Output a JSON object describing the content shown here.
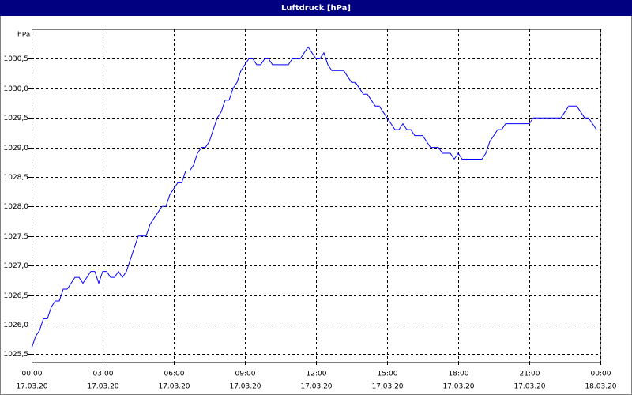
{
  "chart_data": {
    "type": "line",
    "title": "Luftdruck [hPa]",
    "y_label": "hPa",
    "color": "#0000ff",
    "grid": true,
    "x": [
      0,
      10,
      20,
      30,
      40,
      50,
      60,
      70,
      80,
      90,
      100,
      110,
      120,
      130,
      140,
      150,
      160,
      170,
      180,
      190,
      200,
      210,
      220,
      230,
      240,
      250,
      260,
      270,
      280,
      290,
      300,
      310,
      320,
      330,
      340,
      350,
      360,
      370,
      380,
      390,
      400,
      410,
      420,
      430,
      440,
      450,
      460,
      470,
      480,
      490,
      500,
      510,
      520,
      530,
      540,
      550,
      560,
      570,
      580,
      590,
      600,
      610,
      620,
      630,
      640,
      650,
      660,
      670,
      680,
      690,
      700,
      710,
      720,
      730,
      740,
      750,
      760,
      770,
      780,
      790,
      800,
      810,
      820,
      830,
      840,
      850,
      860,
      870,
      880,
      890,
      900,
      910,
      920,
      930,
      940,
      950,
      960,
      970,
      980,
      990,
      1000,
      1010,
      1020,
      1030,
      1040,
      1050,
      1060,
      1070,
      1080,
      1090,
      1100,
      1110,
      1120,
      1130,
      1140,
      1150,
      1160,
      1170,
      1180,
      1190,
      1200,
      1210,
      1220,
      1230,
      1240,
      1250,
      1260,
      1270,
      1280,
      1290,
      1300,
      1310,
      1320,
      1330,
      1340,
      1350,
      1360,
      1370,
      1380,
      1390,
      1400,
      1410,
      1420,
      1430
    ],
    "values": [
      1025.6,
      1025.8,
      1025.9,
      1026.1,
      1026.1,
      1026.3,
      1026.4,
      1026.4,
      1026.6,
      1026.6,
      1026.7,
      1026.8,
      1026.8,
      1026.7,
      1026.8,
      1026.9,
      1026.9,
      1026.7,
      1026.9,
      1026.9,
      1026.8,
      1026.8,
      1026.9,
      1026.8,
      1026.9,
      1027.1,
      1027.3,
      1027.5,
      1027.5,
      1027.5,
      1027.7,
      1027.8,
      1027.9,
      1028.0,
      1028.0,
      1028.2,
      1028.3,
      1028.4,
      1028.4,
      1028.6,
      1028.6,
      1028.7,
      1028.9,
      1029.0,
      1029.0,
      1029.1,
      1029.3,
      1029.5,
      1029.6,
      1029.8,
      1029.8,
      1030.0,
      1030.1,
      1030.3,
      1030.4,
      1030.5,
      1030.5,
      1030.4,
      1030.4,
      1030.5,
      1030.5,
      1030.4,
      1030.4,
      1030.4,
      1030.4,
      1030.4,
      1030.5,
      1030.5,
      1030.5,
      1030.6,
      1030.7,
      1030.6,
      1030.5,
      1030.5,
      1030.6,
      1030.4,
      1030.3,
      1030.3,
      1030.3,
      1030.3,
      1030.2,
      1030.1,
      1030.1,
      1030.0,
      1029.9,
      1029.9,
      1029.8,
      1029.7,
      1029.7,
      1029.6,
      1029.5,
      1029.4,
      1029.3,
      1029.3,
      1029.4,
      1029.3,
      1029.3,
      1029.2,
      1029.2,
      1029.2,
      1029.1,
      1029.0,
      1029.0,
      1029.0,
      1028.9,
      1028.9,
      1028.9,
      1028.8,
      1028.9,
      1028.8,
      1028.8,
      1028.8,
      1028.8,
      1028.8,
      1028.8,
      1028.9,
      1029.1,
      1029.2,
      1029.3,
      1029.3,
      1029.4,
      1029.4,
      1029.4,
      1029.4,
      1029.4,
      1029.4,
      1029.4,
      1029.5,
      1029.5,
      1029.5,
      1029.5,
      1029.5,
      1029.5,
      1029.5,
      1029.5,
      1029.6,
      1029.7,
      1029.7,
      1029.7,
      1029.6,
      1029.5,
      1029.5,
      1029.4,
      1029.3
    ],
    "xlim": [
      0,
      1440
    ],
    "xticks": [
      {
        "value": 0,
        "label": "00:00",
        "date": "17.03.20"
      },
      {
        "value": 180,
        "label": "03:00",
        "date": "17.03.20"
      },
      {
        "value": 360,
        "label": "06:00",
        "date": "17.03.20"
      },
      {
        "value": 540,
        "label": "09:00",
        "date": "17.03.20"
      },
      {
        "value": 720,
        "label": "12:00",
        "date": "17.03.20"
      },
      {
        "value": 900,
        "label": "15:00",
        "date": "17.03.20"
      },
      {
        "value": 1080,
        "label": "18:00",
        "date": "17.03.20"
      },
      {
        "value": 1260,
        "label": "21:00",
        "date": "17.03.20"
      },
      {
        "value": 1440,
        "label": "00:00",
        "date": "18.03.20"
      }
    ],
    "ylim": [
      1025.37,
      1031.0
    ],
    "yticks": [
      {
        "value": 1025.5,
        "label": "1025,5"
      },
      {
        "value": 1026.0,
        "label": "1026,0"
      },
      {
        "value": 1026.5,
        "label": "1026,5"
      },
      {
        "value": 1027.0,
        "label": "1027,0"
      },
      {
        "value": 1027.5,
        "label": "1027,5"
      },
      {
        "value": 1028.0,
        "label": "1028,0"
      },
      {
        "value": 1028.5,
        "label": "1028,5"
      },
      {
        "value": 1029.0,
        "label": "1029,0"
      },
      {
        "value": 1029.5,
        "label": "1029,5"
      },
      {
        "value": 1030.0,
        "label": "1030,0"
      },
      {
        "value": 1030.5,
        "label": "1030,5"
      }
    ]
  }
}
